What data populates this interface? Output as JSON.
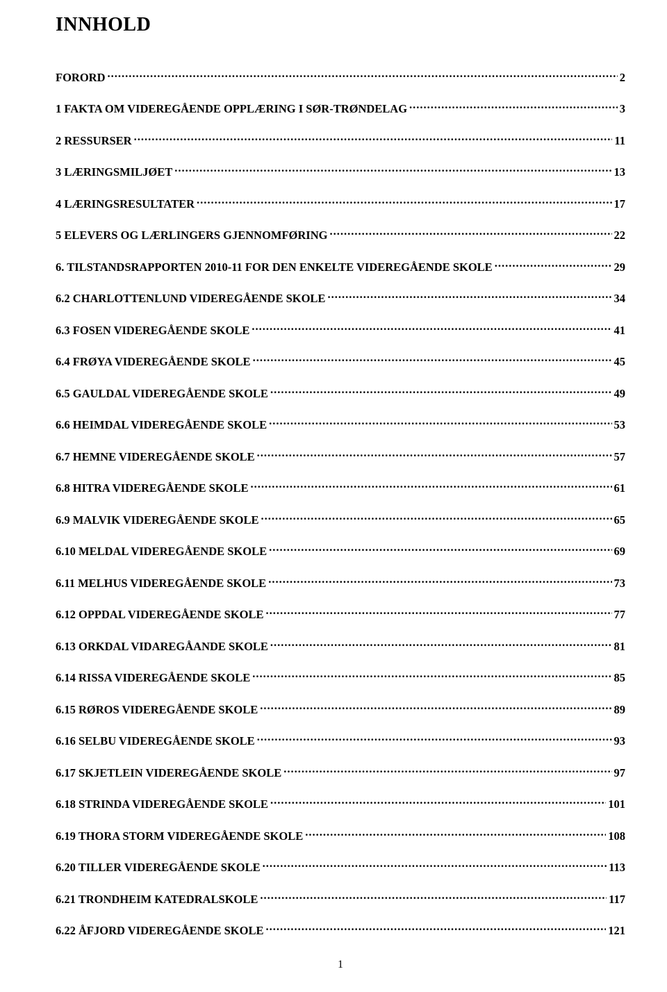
{
  "title": "INNHOLD",
  "entries": [
    {
      "label": "FORORD",
      "page": "2"
    },
    {
      "label": "1 FAKTA OM VIDEREGÅENDE OPPLÆRING I SØR-TRØNDELAG",
      "page": "3"
    },
    {
      "label": "2 RESSURSER",
      "page": "11"
    },
    {
      "label": "3 LÆRINGSMILJØET",
      "page": "13"
    },
    {
      "label": "4 LÆRINGSRESULTATER",
      "page": "17"
    },
    {
      "label": "5 ELEVERS OG LÆRLINGERS GJENNOMFØRING",
      "page": "22"
    },
    {
      "label": "6. TILSTANDSRAPPORTEN 2010-11 FOR DEN ENKELTE VIDEREGÅENDE SKOLE",
      "page": "29"
    },
    {
      "label": "6.2 CHARLOTTENLUND VIDEREGÅENDE SKOLE",
      "page": "34"
    },
    {
      "label": "6.3 FOSEN VIDEREGÅENDE SKOLE",
      "page": "41"
    },
    {
      "label": "6.4 FRØYA VIDEREGÅENDE SKOLE",
      "page": "45"
    },
    {
      "label": "6.5 GAULDAL VIDEREGÅENDE SKOLE",
      "page": "49"
    },
    {
      "label": "6.6 HEIMDAL VIDEREGÅENDE SKOLE",
      "page": "53"
    },
    {
      "label": "6.7 HEMNE VIDEREGÅENDE SKOLE",
      "page": "57"
    },
    {
      "label": "6.8 HITRA VIDEREGÅENDE SKOLE",
      "page": "61"
    },
    {
      "label": "6.9 MALVIK VIDEREGÅENDE SKOLE",
      "page": "65"
    },
    {
      "label": "6.10 MELDAL VIDEREGÅENDE SKOLE",
      "page": "69"
    },
    {
      "label": "6.11 MELHUS VIDEREGÅENDE SKOLE",
      "page": "73"
    },
    {
      "label": "6.12 OPPDAL VIDEREGÅENDE SKOLE",
      "page": "77"
    },
    {
      "label": "6.13 ORKDAL VIDAREGÅANDE SKOLE",
      "page": "81"
    },
    {
      "label": "6.14 RISSA VIDEREGÅENDE SKOLE",
      "page": "85"
    },
    {
      "label": "6.15 RØROS VIDEREGÅENDE SKOLE",
      "page": "89"
    },
    {
      "label": "6.16 SELBU VIDEREGÅENDE SKOLE",
      "page": "93"
    },
    {
      "label": "6.17 SKJETLEIN VIDEREGÅENDE SKOLE",
      "page": "97"
    },
    {
      "label": "6.18 STRINDA VIDEREGÅENDE SKOLE",
      "page": "101"
    },
    {
      "label": "6.19 THORA STORM VIDEREGÅENDE SKOLE",
      "page": "108"
    },
    {
      "label": "6.20 TILLER VIDEREGÅENDE SKOLE",
      "page": "113"
    },
    {
      "label": "6.21 TRONDHEIM KATEDRALSKOLE",
      "page": "117"
    },
    {
      "label": "6.22 ÅFJORD VIDEREGÅENDE SKOLE",
      "page": "121"
    }
  ],
  "page_number": "1",
  "colors": {
    "text": "#000000",
    "background": "#ffffff"
  },
  "typography": {
    "font_family": "Times New Roman",
    "title_fontsize": 28,
    "entry_fontsize": 16.5,
    "entry_fontweight": "bold",
    "pagenum_fontsize": 16
  }
}
